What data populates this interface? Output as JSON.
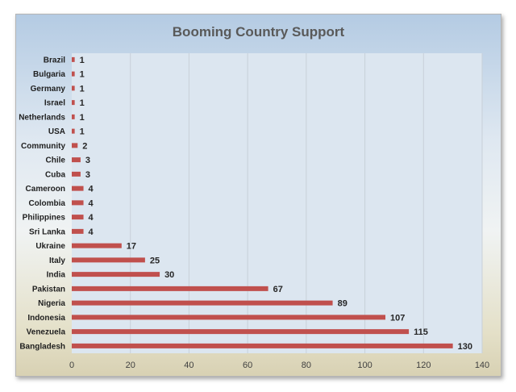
{
  "chart_data": {
    "type": "bar",
    "orientation": "horizontal",
    "title": "Booming Country Support",
    "categories": [
      "Brazil",
      "Bulgaria",
      "Germany",
      "Israel",
      "Netherlands",
      "USA",
      "Community",
      "Chile",
      "Cuba",
      "Cameroon",
      "Colombia",
      "Philippines",
      "Sri Lanka",
      "Ukraine",
      "Italy",
      "India",
      "Pakistan",
      "Nigeria",
      "Indonesia",
      "Venezuela",
      "Bangladesh"
    ],
    "values": [
      1,
      1,
      1,
      1,
      1,
      1,
      2,
      3,
      3,
      4,
      4,
      4,
      4,
      17,
      25,
      30,
      67,
      89,
      107,
      115,
      130
    ],
    "xlim": [
      0,
      140
    ],
    "xticks": [
      0,
      20,
      40,
      60,
      80,
      100,
      120,
      140
    ],
    "grid": "vertical",
    "legend": "none",
    "data_labels": true,
    "colors": {
      "bar": "#c0504d",
      "plot_area": "#dce6f0",
      "gridline": "#c8d0d8"
    }
  }
}
